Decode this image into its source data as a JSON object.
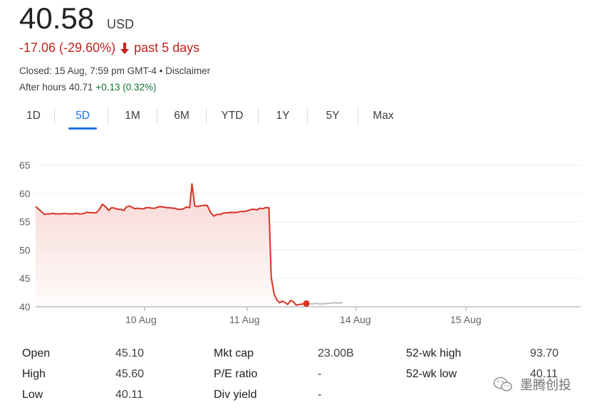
{
  "quote": {
    "price": "40.58",
    "currency": "USD",
    "change": "-17.06 (-29.60%)",
    "period": "past 5 days",
    "closed": "Closed: 15 Aug, 7:59 pm GMT-4 • Disclaimer",
    "after_hours_prefix": "After hours 40.71 ",
    "after_hours_change": "+0.13 (0.32%)"
  },
  "tabs": [
    {
      "label": "1D",
      "active": false
    },
    {
      "label": "5D",
      "active": true
    },
    {
      "label": "1M",
      "active": false
    },
    {
      "label": "6M",
      "active": false
    },
    {
      "label": "YTD",
      "active": false
    },
    {
      "label": "1Y",
      "active": false
    },
    {
      "label": "5Y",
      "active": false
    },
    {
      "label": "Max",
      "active": false
    }
  ],
  "colors": {
    "line": "#d93025",
    "fill_top": "#f6d0cd",
    "after_hours_line": "#bdbdbd",
    "grid": "#eeeeee",
    "baseline": "#9aa0a6",
    "marker": "#d93025"
  },
  "chart_data": {
    "type": "line",
    "title": "",
    "xlabel": "",
    "ylabel": "",
    "ylim": [
      40,
      65
    ],
    "yticks": [
      "65",
      "60",
      "55",
      "50",
      "45",
      "40"
    ],
    "xticks": [
      "10 Aug",
      "11 Aug",
      "14 Aug",
      "15 Aug"
    ],
    "grid": true,
    "series": [
      {
        "values": [
          57.7,
          57.3,
          56.8,
          56.3,
          56.4,
          56.4,
          56.5,
          56.4,
          56.4,
          56.4,
          56.5,
          56.4,
          56.4,
          56.4,
          56.5,
          56.4,
          56.4,
          56.5,
          56.7,
          56.6,
          56.6,
          56.6,
          57.1,
          58.1,
          57.6,
          57.0,
          57.5,
          57.4,
          57.2,
          57.2,
          57.0,
          57.6,
          57.8,
          57.5,
          57.3,
          57.4,
          57.3,
          57.3,
          57.5,
          57.5,
          57.4,
          57.4,
          57.6,
          57.7,
          57.6,
          57.5,
          57.5,
          57.4,
          57.4,
          57.2,
          57.2,
          57.3,
          57.6,
          57.5,
          61.7,
          57.8,
          57.7,
          57.8,
          57.9,
          57.9,
          56.6,
          56.0,
          56.3,
          56.3,
          56.5,
          56.6,
          56.6,
          56.7,
          56.6,
          56.7,
          56.8,
          56.8,
          56.9,
          57.0,
          57.2,
          57.2,
          57.1,
          57.4,
          57.3,
          57.5,
          57.5,
          45.2,
          42.3,
          41.2,
          40.7,
          41.0,
          40.8,
          40.4,
          41.1,
          40.9,
          40.3,
          40.4,
          40.5,
          40.58
        ],
        "x_hours": [
          0.0,
          0.45,
          1.0,
          1.6,
          2.1,
          2.5,
          3.1,
          3.5,
          4.1,
          4.6,
          5.1,
          5.6,
          6.2,
          6.7,
          7.1,
          7.6,
          8.1,
          8.6,
          9.1,
          9.6,
          10.1,
          10.7,
          11.2,
          11.8,
          12.4,
          12.9,
          13.4,
          14.0,
          14.5,
          15.0,
          15.6,
          16.0,
          16.6,
          17.1,
          17.6,
          18.0,
          18.6,
          19.1,
          19.5,
          20.0,
          20.6,
          21.1,
          21.6,
          22.0,
          22.5,
          23.1,
          23.6,
          24.1,
          24.6,
          25.1,
          25.6,
          26.1,
          26.6,
          27.2,
          27.6,
          28.1,
          28.5,
          29.0,
          29.6,
          30.3,
          30.9,
          31.5,
          32.0,
          32.6,
          33.0,
          33.6,
          34.1,
          34.6,
          35.1,
          35.6,
          36.1,
          36.6,
          37.2,
          37.6,
          38.1,
          38.6,
          39.1,
          39.6,
          40.1,
          40.6,
          41.2,
          41.6,
          42.1,
          42.6,
          43.1,
          43.5,
          44.0,
          44.5,
          45.0,
          45.5,
          46.0,
          46.5,
          47.2,
          47.8
        ]
      },
      {
        "values": [
          40.58,
          40.5,
          40.6,
          40.5,
          40.55,
          40.6,
          40.7,
          40.65,
          40.71
        ],
        "x_hours": [
          47.8,
          48.6,
          49.4,
          50.2,
          51.0,
          51.8,
          52.6,
          53.4,
          54.2
        ]
      }
    ]
  },
  "stats": [
    [
      {
        "label": "Open",
        "value": "45.10"
      },
      {
        "label": "High",
        "value": "45.60"
      },
      {
        "label": "Low",
        "value": "40.11"
      }
    ],
    [
      {
        "label": "Mkt cap",
        "value": "23.00B"
      },
      {
        "label": "P/E ratio",
        "value": "-"
      },
      {
        "label": "Div yield",
        "value": "-"
      }
    ],
    [
      {
        "label": "52-wk high",
        "value": "93.70"
      },
      {
        "label": "52-wk low",
        "value": "40.11"
      }
    ]
  ],
  "watermark": {
    "text": "墨腾创投",
    "icon": "wechat-icon"
  }
}
